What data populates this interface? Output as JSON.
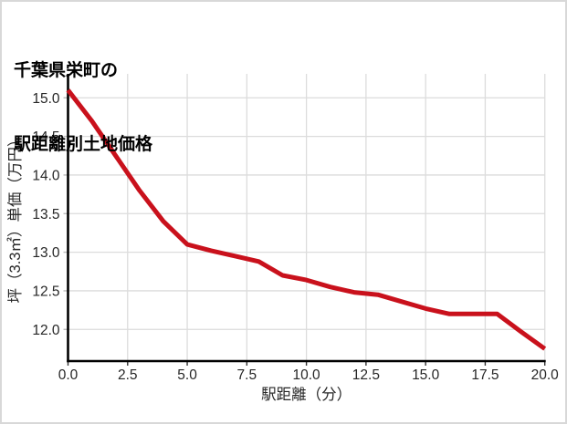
{
  "card": {
    "background_color": "#ffffff",
    "border_color": "#d8d8d8"
  },
  "title": {
    "line1": "千葉県栄町の",
    "line2": "駅距離別土地価格"
  },
  "chart_data": {
    "type": "line",
    "title": "千葉県栄町の駅距離別土地価格",
    "xlabel": "駅距離（分）",
    "ylabel": "坪（3.3㎡）単価（万円）",
    "x": [
      0,
      1,
      2,
      3,
      4,
      5,
      6,
      7,
      8,
      9,
      10,
      11,
      12,
      13,
      14,
      15,
      16,
      17,
      18,
      19,
      20
    ],
    "values": [
      15.1,
      14.7,
      14.25,
      13.8,
      13.4,
      13.1,
      13.02,
      12.95,
      12.88,
      12.7,
      12.64,
      12.55,
      12.48,
      12.45,
      12.36,
      12.27,
      12.2,
      12.2,
      12.2,
      11.97,
      11.75
    ],
    "xlim": [
      0,
      20
    ],
    "ylim": [
      11.59,
      15.31
    ],
    "xticks": [
      0,
      2.5,
      5,
      7.5,
      10,
      12.5,
      15,
      17.5,
      20
    ],
    "xtick_labels": [
      "0.0",
      "2.5",
      "5.0",
      "7.5",
      "10.0",
      "12.5",
      "15.0",
      "17.5",
      "20.0"
    ],
    "yticks": [
      12.0,
      12.5,
      13.0,
      13.5,
      14.0,
      14.5,
      15.0
    ],
    "ytick_labels": [
      "12.0",
      "12.5",
      "13.0",
      "13.5",
      "14.0",
      "14.5",
      "15.0"
    ],
    "grid": true,
    "legend": "none",
    "line_color": "#c9111c",
    "grid_color": "#dcdcdc",
    "axis_color": "#000000",
    "tick_label_color": "#262626"
  }
}
